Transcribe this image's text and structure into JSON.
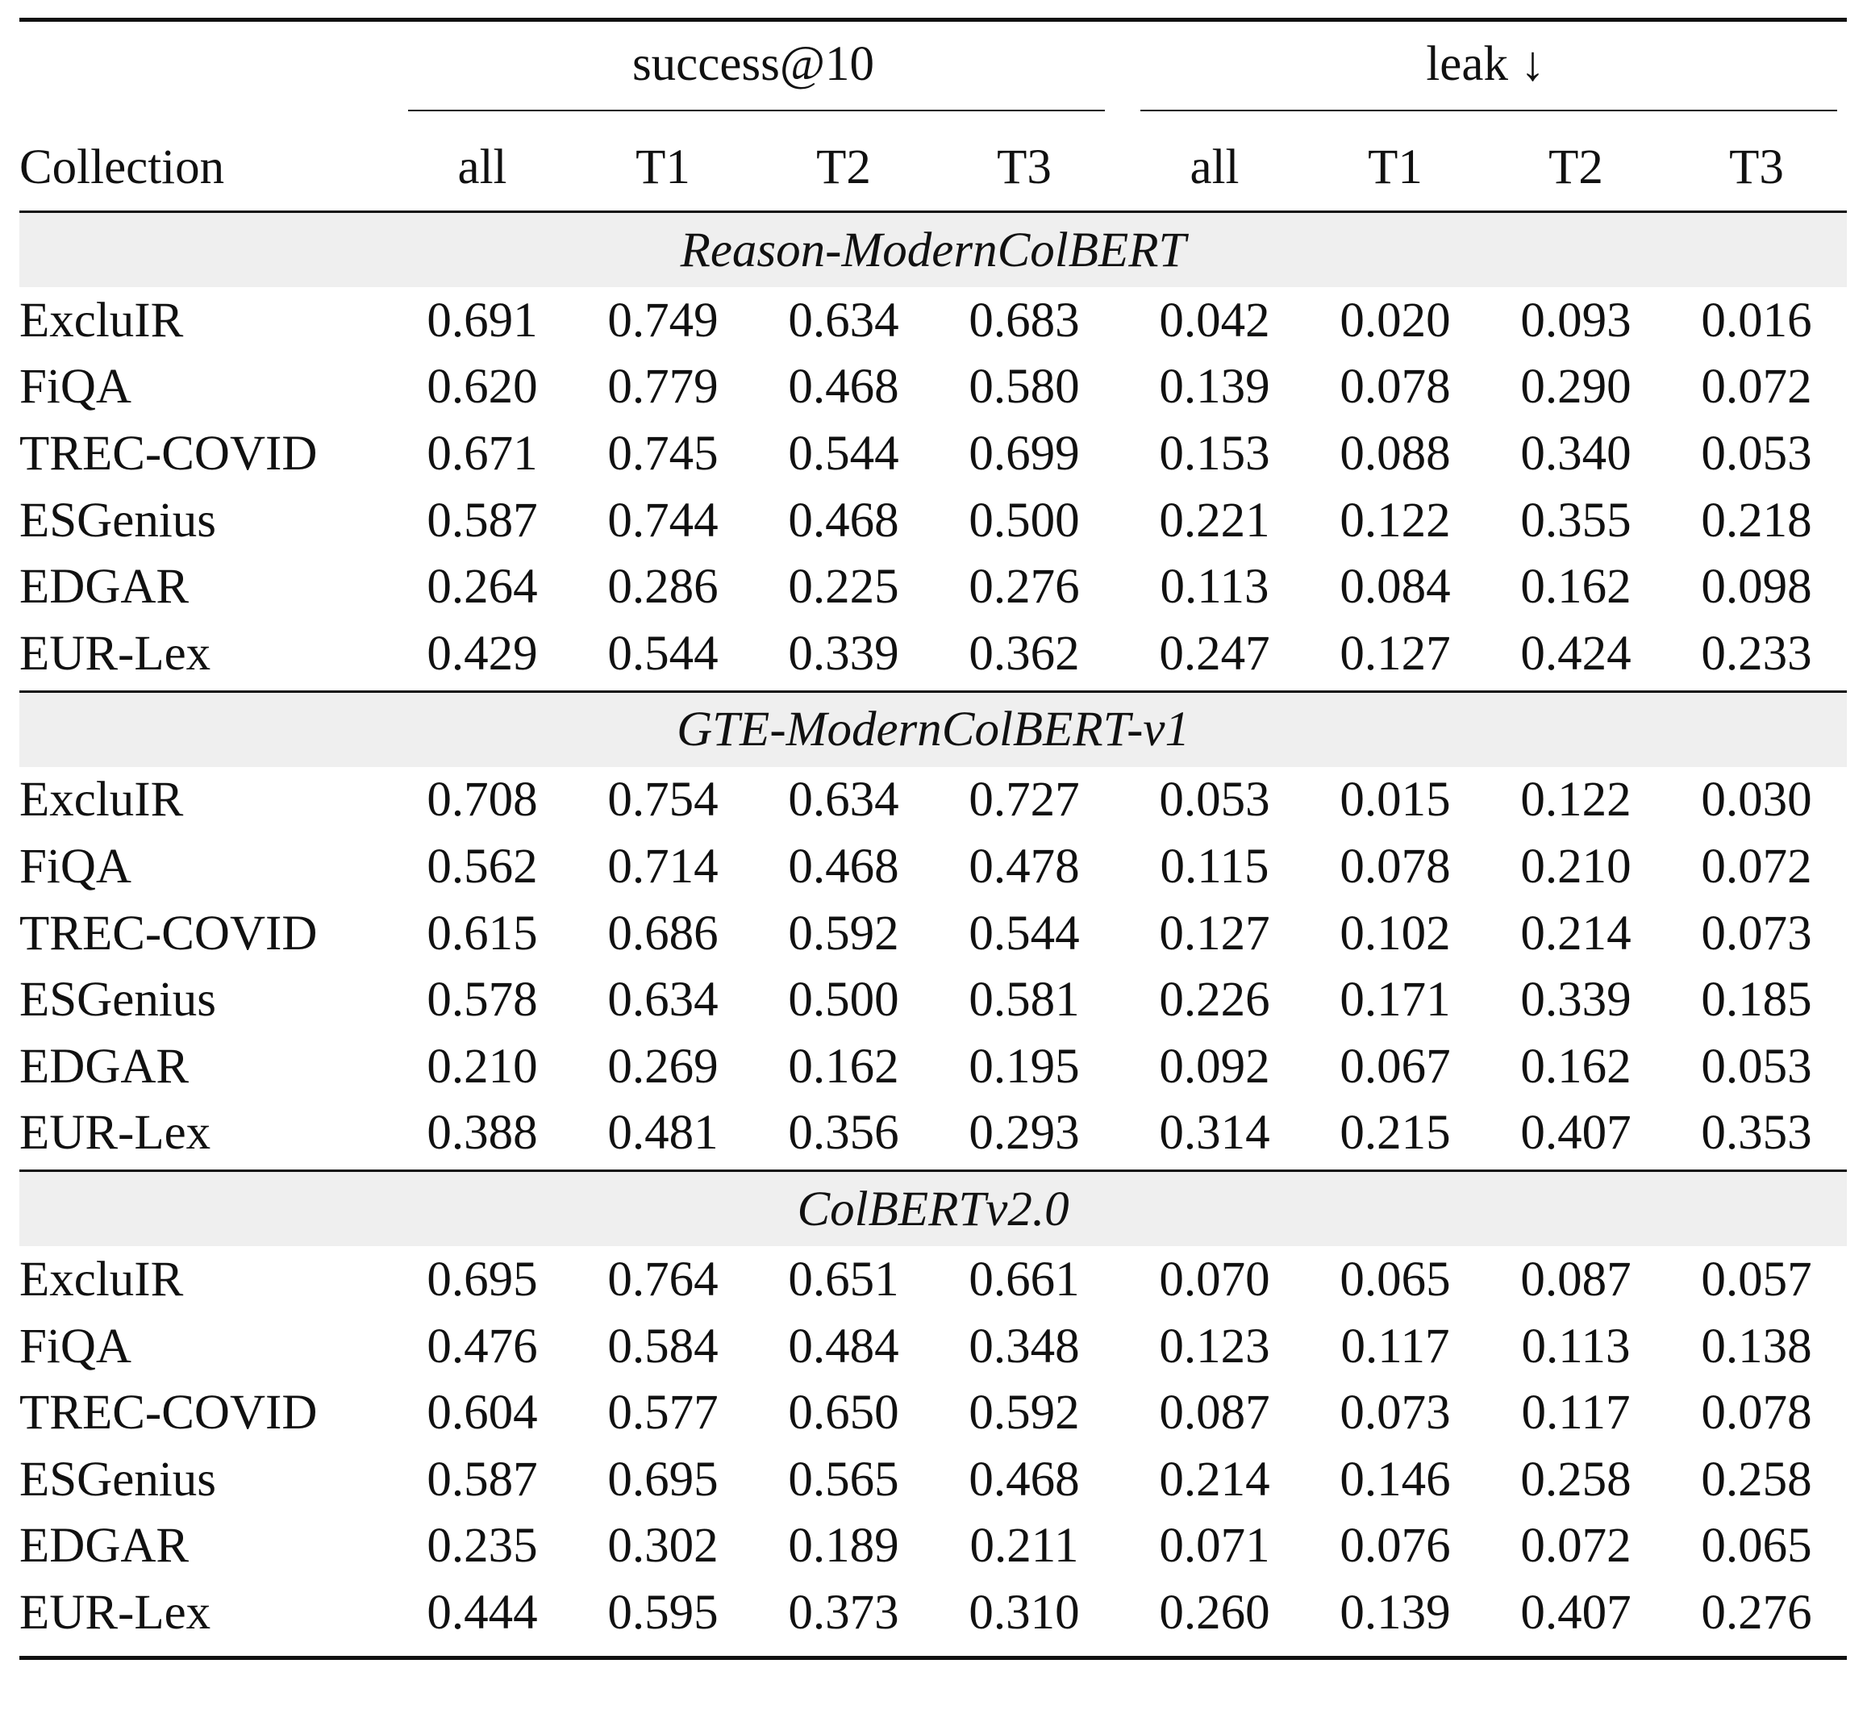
{
  "table": {
    "collection_header": "Collection",
    "groups": [
      {
        "label": "success@10"
      },
      {
        "label": "leak ↓"
      }
    ],
    "subcolumns": [
      "all",
      "T1",
      "T2",
      "T3",
      "all",
      "T1",
      "T2",
      "T3"
    ],
    "sections": [
      {
        "model": "Reason-ModernColBERT",
        "rows": [
          {
            "collection": "ExcluIR",
            "values": [
              "0.691",
              "0.749",
              "0.634",
              "0.683",
              "0.042",
              "0.020",
              "0.093",
              "0.016"
            ],
            "bold": [
              2,
              6
            ]
          },
          {
            "collection": "FiQA",
            "values": [
              "0.620",
              "0.779",
              "0.468",
              "0.580",
              "0.139",
              "0.078",
              "0.290",
              "0.072"
            ],
            "bold": [
              2,
              6
            ]
          },
          {
            "collection": "TREC-COVID",
            "values": [
              "0.671",
              "0.745",
              "0.544",
              "0.699",
              "0.153",
              "0.088",
              "0.340",
              "0.053"
            ],
            "bold": [
              2,
              6
            ]
          },
          {
            "collection": "ESGenius",
            "values": [
              "0.587",
              "0.744",
              "0.468",
              "0.500",
              "0.221",
              "0.122",
              "0.355",
              "0.218"
            ],
            "bold": [
              2,
              6
            ]
          },
          {
            "collection": "EDGAR",
            "values": [
              "0.264",
              "0.286",
              "0.225",
              "0.276",
              "0.113",
              "0.084",
              "0.162",
              "0.098"
            ],
            "bold": [
              2,
              6
            ]
          },
          {
            "collection": "EUR-Lex",
            "values": [
              "0.429",
              "0.544",
              "0.339",
              "0.362",
              "0.247",
              "0.127",
              "0.424",
              "0.233"
            ],
            "bold": [
              2,
              6
            ]
          }
        ]
      },
      {
        "model": "GTE-ModernColBERT-v1",
        "rows": [
          {
            "collection": "ExcluIR",
            "values": [
              "0.708",
              "0.754",
              "0.634",
              "0.727",
              "0.053",
              "0.015",
              "0.122",
              "0.030"
            ],
            "bold": [
              2,
              6
            ]
          },
          {
            "collection": "FiQA",
            "values": [
              "0.562",
              "0.714",
              "0.468",
              "0.478",
              "0.115",
              "0.078",
              "0.210",
              "0.072"
            ],
            "bold": [
              2,
              6
            ]
          },
          {
            "collection": "TREC-COVID",
            "values": [
              "0.615",
              "0.686",
              "0.592",
              "0.544",
              "0.127",
              "0.102",
              "0.214",
              "0.073"
            ],
            "bold": [
              3,
              6
            ]
          },
          {
            "collection": "ESGenius",
            "values": [
              "0.578",
              "0.634",
              "0.500",
              "0.581",
              "0.226",
              "0.171",
              "0.339",
              "0.185"
            ],
            "bold": [
              2,
              6
            ]
          },
          {
            "collection": "EDGAR",
            "values": [
              "0.210",
              "0.269",
              "0.162",
              "0.195",
              "0.092",
              "0.067",
              "0.162",
              "0.053"
            ],
            "bold": [
              2,
              6
            ]
          },
          {
            "collection": "EUR-Lex",
            "values": [
              "0.388",
              "0.481",
              "0.356",
              "0.293",
              "0.314",
              "0.215",
              "0.407",
              "0.353"
            ],
            "bold": [
              3,
              6
            ]
          }
        ]
      },
      {
        "model": "ColBERTv2.0",
        "rows": [
          {
            "collection": "ExcluIR",
            "values": [
              "0.695",
              "0.764",
              "0.651",
              "0.661",
              "0.070",
              "0.065",
              "0.087",
              "0.057"
            ],
            "bold": [
              2,
              6
            ]
          },
          {
            "collection": "FiQA",
            "values": [
              "0.476",
              "0.584",
              "0.484",
              "0.348",
              "0.123",
              "0.117",
              "0.113",
              "0.138"
            ],
            "bold": [
              3,
              7
            ]
          },
          {
            "collection": "TREC-COVID",
            "values": [
              "0.604",
              "0.577",
              "0.650",
              "0.592",
              "0.087",
              "0.073",
              "0.117",
              "0.078"
            ],
            "bold": [
              1,
              6
            ]
          },
          {
            "collection": "ESGenius",
            "values": [
              "0.587",
              "0.695",
              "0.565",
              "0.468",
              "0.214",
              "0.146",
              "0.258",
              "0.258"
            ],
            "bold": [
              3,
              6,
              7
            ]
          },
          {
            "collection": "EDGAR",
            "values": [
              "0.235",
              "0.302",
              "0.189",
              "0.211",
              "0.071",
              "0.076",
              "0.072",
              "0.065"
            ],
            "bold": [
              2,
              5
            ]
          },
          {
            "collection": "EUR-Lex",
            "values": [
              "0.444",
              "0.595",
              "0.373",
              "0.310",
              "0.260",
              "0.139",
              "0.407",
              "0.276"
            ],
            "bold": [
              3,
              6
            ]
          }
        ]
      }
    ]
  }
}
